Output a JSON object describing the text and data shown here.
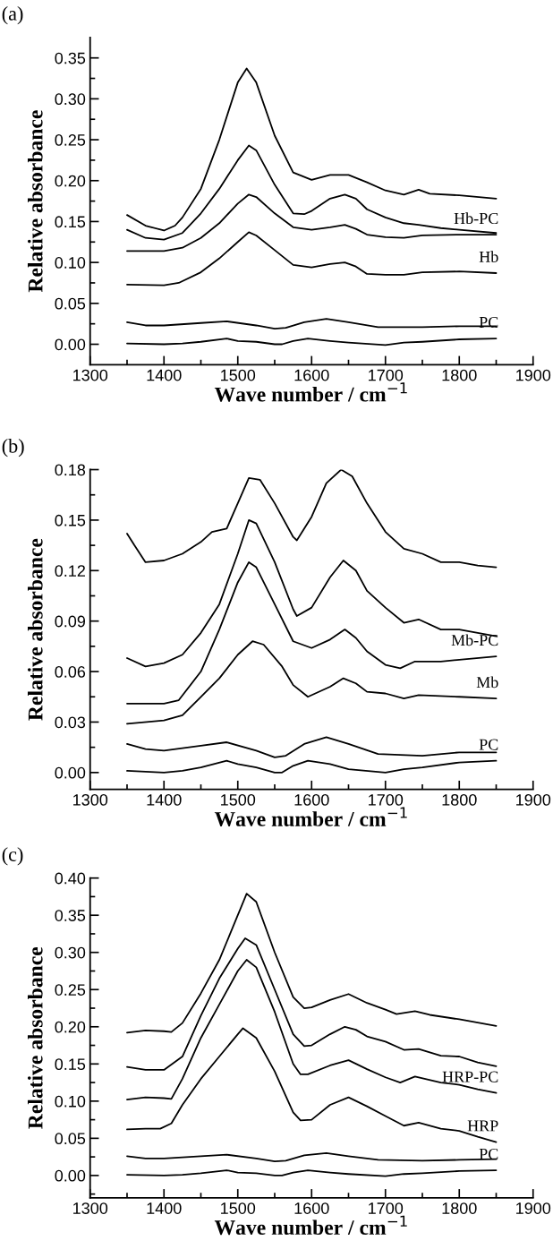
{
  "chart_data": [
    {
      "type": "line",
      "title": "(a)",
      "xlabel": "Wave number / cm$^{−1}$",
      "ylabel": "Relative absorbance",
      "xlim": [
        1300,
        1900
      ],
      "ylim": [
        -0.025,
        0.375
      ],
      "xticks": [
        1300,
        {
          "value": 1350,
          "label": null
        },
        1400,
        {
          "value": 1450,
          "label": null
        },
        1500,
        {
          "value": 1550,
          "label": null
        },
        1600,
        {
          "value": 1650,
          "label": null
        },
        1700,
        {
          "value": 1750,
          "label": null
        },
        1800,
        {
          "value": 1850,
          "label": null
        },
        1900
      ],
      "yticks": [
        {
          "value": 0,
          "label": "0.00"
        },
        {
          "value": 0.025,
          "label": null
        },
        {
          "value": 0.05,
          "label": "0.05"
        },
        {
          "value": 0.075,
          "label": null
        },
        {
          "value": 0.1,
          "label": "0.10"
        },
        {
          "value": 0.125,
          "label": null
        },
        {
          "value": 0.15,
          "label": "0.15"
        },
        {
          "value": 0.175,
          "label": null
        },
        {
          "value": 0.2,
          "label": "0.20"
        },
        {
          "value": 0.225,
          "label": null
        },
        {
          "value": 0.25,
          "label": "0.25"
        },
        {
          "value": 0.275,
          "label": null
        },
        {
          "value": 0.3,
          "label": "0.30"
        },
        {
          "value": 0.325,
          "label": null
        },
        {
          "value": 0.35,
          "label": "0.35"
        }
      ],
      "series": [
        {
          "color": "#000000",
          "x": [
            1350,
            1375,
            1400,
            1415,
            1425,
            1450,
            1475,
            1500,
            1512,
            1525,
            1550,
            1575,
            1600,
            1625,
            1650,
            1675,
            1700,
            1725,
            1745,
            1760,
            1800,
            1850
          ],
          "values": [
            0.158,
            0.145,
            0.139,
            0.145,
            0.155,
            0.19,
            0.25,
            0.32,
            0.337,
            0.32,
            0.255,
            0.21,
            0.201,
            0.207,
            0.207,
            0.198,
            0.188,
            0.183,
            0.189,
            0.184,
            0.182,
            0.178
          ]
        },
        {
          "color": "#000000",
          "x": [
            1350,
            1375,
            1400,
            1425,
            1450,
            1475,
            1500,
            1515,
            1525,
            1550,
            1575,
            1590,
            1600,
            1625,
            1645,
            1660,
            1675,
            1700,
            1725,
            1745,
            1775,
            1800,
            1850
          ],
          "values": [
            0.14,
            0.13,
            0.128,
            0.136,
            0.16,
            0.19,
            0.225,
            0.243,
            0.237,
            0.195,
            0.16,
            0.159,
            0.163,
            0.178,
            0.183,
            0.178,
            0.165,
            0.155,
            0.148,
            0.146,
            0.142,
            0.14,
            0.136
          ]
        },
        {
          "name": "Hb-PC",
          "color": "#000000",
          "x": [
            1350,
            1400,
            1425,
            1450,
            1475,
            1500,
            1515,
            1525,
            1550,
            1575,
            1600,
            1625,
            1645,
            1660,
            1675,
            1700,
            1725,
            1750,
            1800,
            1850
          ],
          "values": [
            0.114,
            0.114,
            0.118,
            0.13,
            0.148,
            0.172,
            0.183,
            0.18,
            0.16,
            0.143,
            0.14,
            0.143,
            0.146,
            0.141,
            0.134,
            0.131,
            0.13,
            0.133,
            0.134,
            0.134
          ]
        },
        {
          "name": "Hb",
          "color": "#000000",
          "x": [
            1350,
            1400,
            1420,
            1450,
            1475,
            1500,
            1515,
            1525,
            1550,
            1575,
            1600,
            1625,
            1645,
            1660,
            1675,
            1700,
            1725,
            1750,
            1800,
            1850
          ],
          "values": [
            0.073,
            0.072,
            0.075,
            0.088,
            0.105,
            0.125,
            0.137,
            0.133,
            0.115,
            0.097,
            0.094,
            0.098,
            0.1,
            0.095,
            0.086,
            0.085,
            0.085,
            0.088,
            0.089,
            0.087
          ]
        },
        {
          "color": "#000000",
          "x": [
            1350,
            1375,
            1400,
            1450,
            1485,
            1525,
            1550,
            1565,
            1590,
            1620,
            1650,
            1690,
            1750,
            1800,
            1850
          ],
          "values": [
            0.027,
            0.023,
            0.023,
            0.026,
            0.028,
            0.023,
            0.019,
            0.02,
            0.027,
            0.031,
            0.027,
            0.021,
            0.021,
            0.022,
            0.022
          ]
        },
        {
          "name": "PC",
          "color": "#000000",
          "x": [
            1350,
            1400,
            1425,
            1450,
            1485,
            1500,
            1525,
            1550,
            1560,
            1575,
            1595,
            1625,
            1650,
            1700,
            1725,
            1750,
            1800,
            1850
          ],
          "values": [
            0.001,
            0.0,
            0.001,
            0.003,
            0.007,
            0.004,
            0.003,
            0.0,
            0.0,
            0.004,
            0.007,
            0.004,
            0.002,
            -0.001,
            0.002,
            0.003,
            0.006,
            0.007
          ]
        }
      ]
    },
    {
      "type": "line",
      "title": "(b)",
      "xlabel": "Wave number / cm$^{−1}$",
      "ylabel": "Relative absorbance",
      "xlim": [
        1300,
        1900
      ],
      "ylim": [
        -0.01,
        0.18
      ],
      "xticks": [
        1300,
        {
          "value": 1350,
          "label": null
        },
        1400,
        {
          "value": 1450,
          "label": null
        },
        1500,
        {
          "value": 1550,
          "label": null
        },
        1600,
        {
          "value": 1650,
          "label": null
        },
        1700,
        {
          "value": 1750,
          "label": null
        },
        1800,
        {
          "value": 1850,
          "label": null
        },
        1900
      ],
      "yticks": [
        {
          "value": 0,
          "label": "0.00"
        },
        {
          "value": 0.015,
          "label": null
        },
        {
          "value": 0.03,
          "label": "0.03"
        },
        {
          "value": 0.045,
          "label": null
        },
        {
          "value": 0.06,
          "label": "0.06"
        },
        {
          "value": 0.075,
          "label": null
        },
        {
          "value": 0.09,
          "label": "0.09"
        },
        {
          "value": 0.105,
          "label": null
        },
        {
          "value": 0.12,
          "label": "0.12"
        },
        {
          "value": 0.135,
          "label": null
        },
        {
          "value": 0.15,
          "label": "0.15"
        },
        {
          "value": 0.165,
          "label": null
        },
        {
          "value": 0.18,
          "label": "0.18"
        }
      ],
      "series": [
        {
          "color": "#000000",
          "x": [
            1350,
            1360,
            1375,
            1400,
            1425,
            1450,
            1465,
            1485,
            1500,
            1515,
            1530,
            1550,
            1575,
            1580,
            1600,
            1620,
            1640,
            1655,
            1675,
            1700,
            1725,
            1750,
            1775,
            1800,
            1825,
            1850
          ],
          "values": [
            0.142,
            0.135,
            0.125,
            0.126,
            0.13,
            0.137,
            0.143,
            0.145,
            0.16,
            0.175,
            0.174,
            0.16,
            0.14,
            0.138,
            0.152,
            0.172,
            0.18,
            0.176,
            0.16,
            0.143,
            0.133,
            0.13,
            0.125,
            0.125,
            0.123,
            0.122
          ]
        },
        {
          "color": "#000000",
          "x": [
            1350,
            1375,
            1400,
            1425,
            1450,
            1475,
            1500,
            1515,
            1525,
            1550,
            1575,
            1580,
            1600,
            1625,
            1643,
            1660,
            1675,
            1700,
            1725,
            1745,
            1775,
            1800,
            1825,
            1850
          ],
          "values": [
            0.068,
            0.063,
            0.065,
            0.07,
            0.083,
            0.1,
            0.13,
            0.15,
            0.148,
            0.125,
            0.097,
            0.093,
            0.098,
            0.116,
            0.126,
            0.12,
            0.108,
            0.098,
            0.089,
            0.091,
            0.085,
            0.085,
            0.083,
            0.081
          ]
        },
        {
          "name": "Mb-PC",
          "color": "#000000",
          "x": [
            1350,
            1400,
            1420,
            1450,
            1475,
            1500,
            1515,
            1525,
            1550,
            1575,
            1600,
            1625,
            1645,
            1660,
            1675,
            1700,
            1720,
            1740,
            1775,
            1800,
            1850
          ],
          "values": [
            0.041,
            0.041,
            0.043,
            0.06,
            0.085,
            0.113,
            0.125,
            0.122,
            0.1,
            0.078,
            0.074,
            0.079,
            0.085,
            0.08,
            0.072,
            0.064,
            0.062,
            0.066,
            0.066,
            0.067,
            0.069
          ]
        },
        {
          "name": "Mb",
          "color": "#000000",
          "x": [
            1350,
            1400,
            1425,
            1450,
            1475,
            1500,
            1520,
            1535,
            1560,
            1575,
            1595,
            1625,
            1643,
            1660,
            1675,
            1700,
            1725,
            1745,
            1800,
            1850
          ],
          "values": [
            0.029,
            0.031,
            0.034,
            0.045,
            0.056,
            0.07,
            0.078,
            0.076,
            0.063,
            0.052,
            0.045,
            0.051,
            0.056,
            0.053,
            0.048,
            0.047,
            0.044,
            0.046,
            0.045,
            0.044
          ]
        },
        {
          "color": "#000000",
          "x": [
            1350,
            1375,
            1400,
            1450,
            1485,
            1525,
            1550,
            1565,
            1590,
            1620,
            1650,
            1690,
            1750,
            1800,
            1850
          ],
          "values": [
            0.017,
            0.014,
            0.013,
            0.016,
            0.018,
            0.013,
            0.009,
            0.01,
            0.017,
            0.021,
            0.017,
            0.011,
            0.01,
            0.012,
            0.012
          ]
        },
        {
          "name": "PC",
          "color": "#000000",
          "x": [
            1350,
            1400,
            1425,
            1450,
            1485,
            1500,
            1525,
            1550,
            1560,
            1575,
            1595,
            1625,
            1650,
            1700,
            1725,
            1750,
            1800,
            1850
          ],
          "values": [
            0.001,
            0.0,
            0.001,
            0.003,
            0.007,
            0.005,
            0.003,
            0.0,
            0.0,
            0.004,
            0.007,
            0.005,
            0.002,
            0.0,
            0.002,
            0.003,
            0.006,
            0.007
          ]
        }
      ]
    },
    {
      "type": "line",
      "title": "(c)",
      "xlabel": "Wave number / cm$^{−1}$",
      "ylabel": "Relative absorbance",
      "xlim": [
        1300,
        1900
      ],
      "ylim": [
        -0.03,
        0.4
      ],
      "xticks": [
        1300,
        {
          "value": 1350,
          "label": null
        },
        1400,
        {
          "value": 1450,
          "label": null
        },
        1500,
        {
          "value": 1550,
          "label": null
        },
        1600,
        {
          "value": 1650,
          "label": null
        },
        1700,
        {
          "value": 1750,
          "label": null
        },
        1800,
        {
          "value": 1850,
          "label": null
        },
        1900
      ],
      "yticks": [
        {
          "value": -0.025,
          "label": null
        },
        {
          "value": 0,
          "label": "0.00"
        },
        {
          "value": 0.025,
          "label": null
        },
        {
          "value": 0.05,
          "label": "0.05"
        },
        {
          "value": 0.075,
          "label": null
        },
        {
          "value": 0.1,
          "label": "0.10"
        },
        {
          "value": 0.125,
          "label": null
        },
        {
          "value": 0.15,
          "label": "0.15"
        },
        {
          "value": 0.175,
          "label": null
        },
        {
          "value": 0.2,
          "label": "0.20"
        },
        {
          "value": 0.225,
          "label": null
        },
        {
          "value": 0.25,
          "label": "0.25"
        },
        {
          "value": 0.275,
          "label": null
        },
        {
          "value": 0.3,
          "label": "0.30"
        },
        {
          "value": 0.325,
          "label": null
        },
        {
          "value": 0.35,
          "label": "0.35"
        },
        {
          "value": 0.375,
          "label": null
        },
        {
          "value": 0.4,
          "label": "0.40"
        }
      ],
      "series": [
        {
          "color": "#000000",
          "x": [
            1350,
            1375,
            1400,
            1410,
            1425,
            1450,
            1475,
            1500,
            1512,
            1525,
            1550,
            1575,
            1590,
            1600,
            1625,
            1650,
            1675,
            1700,
            1715,
            1740,
            1760,
            1800,
            1850
          ],
          "values": [
            0.192,
            0.195,
            0.194,
            0.193,
            0.205,
            0.245,
            0.29,
            0.35,
            0.379,
            0.368,
            0.3,
            0.24,
            0.225,
            0.226,
            0.236,
            0.244,
            0.232,
            0.223,
            0.217,
            0.221,
            0.216,
            0.21,
            0.201
          ]
        },
        {
          "color": "#000000",
          "x": [
            1350,
            1375,
            1400,
            1425,
            1450,
            1475,
            1500,
            1510,
            1525,
            1550,
            1575,
            1590,
            1600,
            1625,
            1645,
            1660,
            1675,
            1700,
            1725,
            1745,
            1775,
            1800,
            1825,
            1850
          ],
          "values": [
            0.146,
            0.142,
            0.142,
            0.16,
            0.215,
            0.265,
            0.305,
            0.319,
            0.31,
            0.25,
            0.19,
            0.174,
            0.175,
            0.19,
            0.2,
            0.196,
            0.187,
            0.18,
            0.169,
            0.17,
            0.161,
            0.16,
            0.152,
            0.147
          ]
        },
        {
          "name": "HRP-PC",
          "color": "#000000",
          "x": [
            1350,
            1375,
            1400,
            1410,
            1425,
            1450,
            1475,
            1500,
            1512,
            1525,
            1550,
            1575,
            1585,
            1595,
            1625,
            1650,
            1675,
            1700,
            1720,
            1740,
            1775,
            1800,
            1825,
            1850
          ],
          "values": [
            0.102,
            0.105,
            0.104,
            0.103,
            0.13,
            0.185,
            0.23,
            0.275,
            0.29,
            0.28,
            0.22,
            0.15,
            0.136,
            0.136,
            0.148,
            0.155,
            0.143,
            0.132,
            0.125,
            0.133,
            0.125,
            0.122,
            0.116,
            0.111
          ]
        },
        {
          "name": "HRP",
          "color": "#000000",
          "x": [
            1350,
            1375,
            1395,
            1410,
            1425,
            1450,
            1475,
            1500,
            1507,
            1525,
            1550,
            1575,
            1585,
            1600,
            1625,
            1650,
            1675,
            1700,
            1725,
            1745,
            1775,
            1800,
            1825,
            1850
          ],
          "values": [
            0.062,
            0.063,
            0.063,
            0.07,
            0.095,
            0.13,
            0.16,
            0.19,
            0.198,
            0.185,
            0.14,
            0.085,
            0.074,
            0.075,
            0.095,
            0.105,
            0.093,
            0.08,
            0.067,
            0.071,
            0.063,
            0.06,
            0.052,
            0.045
          ]
        },
        {
          "color": "#000000",
          "x": [
            1350,
            1375,
            1400,
            1450,
            1485,
            1525,
            1550,
            1565,
            1590,
            1620,
            1650,
            1690,
            1750,
            1800,
            1850
          ],
          "values": [
            0.026,
            0.023,
            0.023,
            0.026,
            0.028,
            0.023,
            0.019,
            0.02,
            0.027,
            0.03,
            0.026,
            0.021,
            0.02,
            0.021,
            0.022
          ]
        },
        {
          "name": "PC",
          "color": "#000000",
          "x": [
            1350,
            1400,
            1425,
            1450,
            1485,
            1500,
            1525,
            1550,
            1560,
            1575,
            1595,
            1625,
            1650,
            1700,
            1725,
            1750,
            1800,
            1850
          ],
          "values": [
            0.001,
            0.0,
            0.001,
            0.003,
            0.007,
            0.004,
            0.003,
            0.0,
            0.0,
            0.004,
            0.007,
            0.004,
            0.002,
            -0.001,
            0.002,
            0.003,
            0.006,
            0.007
          ]
        }
      ]
    }
  ]
}
